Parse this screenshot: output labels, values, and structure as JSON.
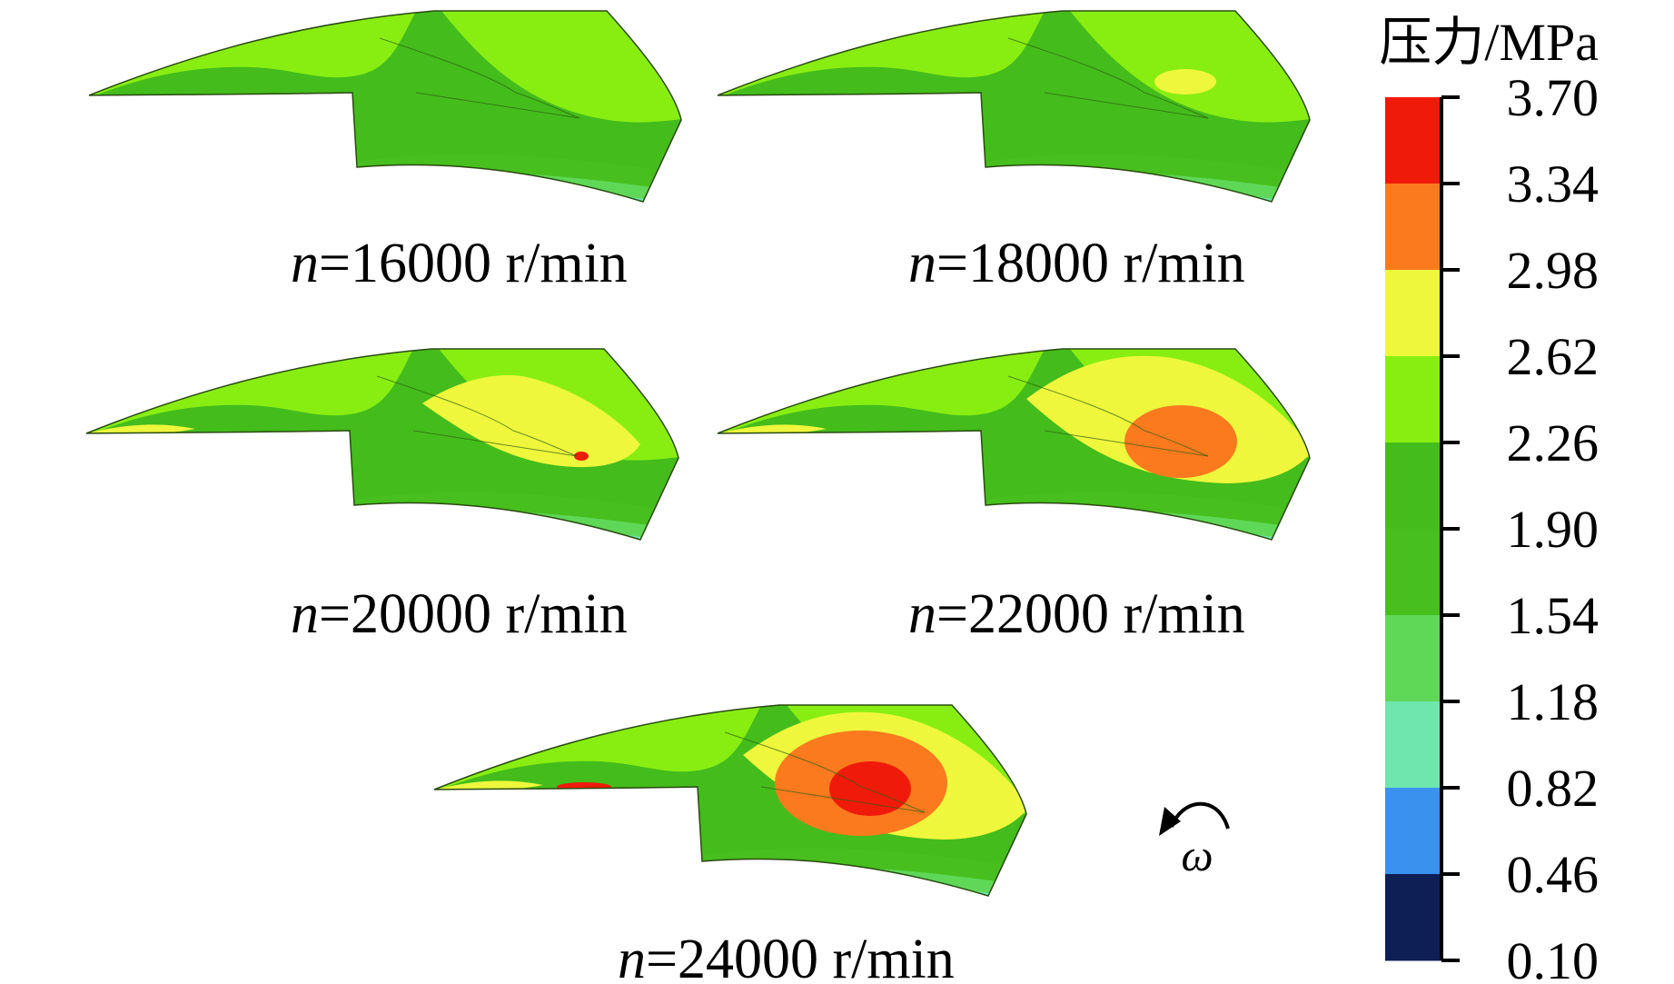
{
  "legend": {
    "title": "压力/MPa",
    "levels": [
      "3.70",
      "3.34",
      "2.98",
      "2.62",
      "2.26",
      "1.90",
      "1.54",
      "1.18",
      "0.82",
      "0.46",
      "0.10"
    ],
    "colors": [
      "#f01a0a",
      "#fb7a1e",
      "#eef73c",
      "#88ee12",
      "#44bc1c",
      "#47bf1e",
      "#5fd858",
      "#6ee6ae",
      "#3a92ee",
      "#0e1f56"
    ]
  },
  "panels": [
    {
      "id": "p16000",
      "var": "n",
      "text": "=16000 r/min"
    },
    {
      "id": "p18000",
      "var": "n",
      "text": "=18000 r/min"
    },
    {
      "id": "p20000",
      "var": "n",
      "text": "=20000 r/min"
    },
    {
      "id": "p22000",
      "var": "n",
      "text": "=22000 r/min"
    },
    {
      "id": "p24000",
      "var": "n",
      "text": "=24000 r/min"
    }
  ],
  "rotation": {
    "symbol": "ω",
    "icon": "rotation-arrow-icon"
  }
}
